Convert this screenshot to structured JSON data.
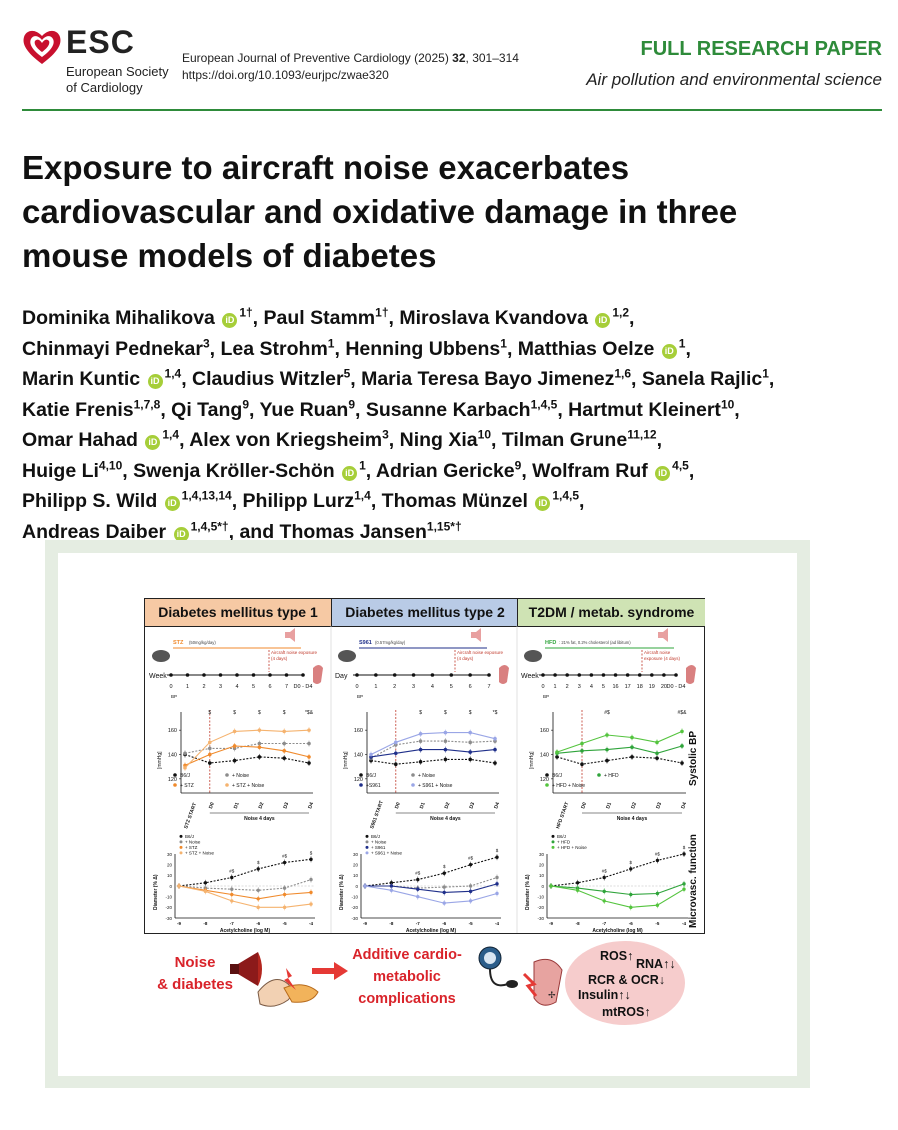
{
  "header": {
    "logo_word": "ESC",
    "logo_sub_1": "European Society",
    "logo_sub_2": "of Cardiology",
    "journal_name": "European Journal of Preventive Cardiology (2025)",
    "journal_volume": "32",
    "journal_pages": ", 301–314",
    "doi": "https://doi.org/10.1093/eurjpc/zwae320",
    "paper_type": "FULL RESEARCH PAPER",
    "paper_category": "Air pollution and environmental science"
  },
  "title_lines": [
    "Exposure to aircraft noise exacerbates",
    "cardiovascular and oxidative damage in three",
    "mouse models of diabetes"
  ],
  "authors": [
    {
      "name": "Dominika Mihalikova",
      "orcid": true,
      "sup": "1†"
    },
    {
      "name": "Paul Stamm",
      "orcid": false,
      "sup": "1†"
    },
    {
      "name": "Miroslava Kvandova",
      "orcid": true,
      "sup": "1,2"
    },
    {
      "name": "Chinmayi Pednekar",
      "orcid": false,
      "sup": "3"
    },
    {
      "name": "Lea Strohm",
      "orcid": false,
      "sup": "1"
    },
    {
      "name": "Henning Ubbens",
      "orcid": false,
      "sup": "1"
    },
    {
      "name": "Matthias Oelze",
      "orcid": true,
      "sup": "1"
    },
    {
      "name": "Marin Kuntic",
      "orcid": true,
      "sup": "1,4"
    },
    {
      "name": "Claudius Witzler",
      "orcid": false,
      "sup": "5"
    },
    {
      "name": "Maria Teresa Bayo Jimenez",
      "orcid": false,
      "sup": "1,6"
    },
    {
      "name": "Sanela Rajlic",
      "orcid": false,
      "sup": "1"
    },
    {
      "name": "Katie Frenis",
      "orcid": false,
      "sup": "1,7,8"
    },
    {
      "name": "Qi Tang",
      "orcid": false,
      "sup": "9"
    },
    {
      "name": "Yue Ruan",
      "orcid": false,
      "sup": "9"
    },
    {
      "name": "Susanne Karbach",
      "orcid": false,
      "sup": "1,4,5"
    },
    {
      "name": "Hartmut Kleinert",
      "orcid": false,
      "sup": "10"
    },
    {
      "name": "Omar Hahad",
      "orcid": true,
      "sup": "1,4"
    },
    {
      "name": "Alex von Kriegsheim",
      "orcid": false,
      "sup": "3"
    },
    {
      "name": "Ning Xia",
      "orcid": false,
      "sup": "10"
    },
    {
      "name": "Tilman Grune",
      "orcid": false,
      "sup": "11,12"
    },
    {
      "name": "Huige Li",
      "orcid": false,
      "sup": "4,10"
    },
    {
      "name": "Swenja Kröller-Schön",
      "orcid": true,
      "sup": "1"
    },
    {
      "name": "Adrian Gericke",
      "orcid": false,
      "sup": "9"
    },
    {
      "name": "Wolfram Ruf",
      "orcid": true,
      "sup": "4,5"
    },
    {
      "name": "Philipp S. Wild",
      "orcid": true,
      "sup": "1,4,13,14"
    },
    {
      "name": "Philipp Lurz",
      "orcid": false,
      "sup": "1,4"
    },
    {
      "name": "Thomas Münzel",
      "orcid": true,
      "sup": "1,4,5"
    },
    {
      "name": "Andreas Daiber",
      "orcid": true,
      "sup": "1,4,5*†"
    },
    {
      "name": "Thomas Jansen",
      "orcid": false,
      "sup": "1,15*†"
    }
  ],
  "author_line_breaks_after": [
    2,
    6,
    10,
    15,
    19,
    23,
    26
  ],
  "graphical_abstract": {
    "panels": [
      {
        "title": "Diabetes mellitus type 1",
        "color": "#f6c9a4",
        "drug_label": "STZ",
        "drug_sub": "(50mg/kg/day)",
        "timeline_unit": "Week",
        "timeline_ticks": [
          "0",
          "1",
          "2",
          "3",
          "4",
          "5",
          "6",
          "7",
          "D0 - D4"
        ],
        "noise_label": "Aircraft noise exposure",
        "noise_sub": "(4 days)",
        "start_label": "STZ START",
        "legend": [
          "B6/J",
          "+ Noise",
          "+ STZ",
          "+ STZ + Noise"
        ],
        "micro_legend": [
          "B6/J",
          "+ Noise",
          "+ STZ",
          "+ STZ + Noise"
        ]
      },
      {
        "title": "Diabetes mellitus type 2",
        "color": "#b9cbe6",
        "drug_label": "S961",
        "drug_sub": "(0.57mg/kg/day)",
        "timeline_unit": "Day",
        "timeline_ticks": [
          "0",
          "1",
          "2",
          "3",
          "4",
          "5",
          "6",
          "7"
        ],
        "noise_label": "Aircraft noise exposure",
        "noise_sub": "(4 days)",
        "start_label": "S961 START",
        "legend": [
          "B6/J",
          "+ Noise",
          "+S961",
          "+ S961 + Noise"
        ],
        "micro_legend": [
          "B6/J",
          "+ Noise",
          "+ S961",
          "+ S961 + Noise"
        ]
      },
      {
        "title": "T2DM / metab. syndrome",
        "color": "#cfe3b4",
        "drug_label": "HFD",
        "drug_sub": ": 21% fat, 0.2% cholesterol (ad libitum)",
        "timeline_unit": "Week",
        "timeline_ticks": [
          "0",
          "1",
          "2",
          "3",
          "4",
          "5",
          "16",
          "17",
          "18",
          "19",
          "20",
          "D0 - D4"
        ],
        "noise_label": "Aircraft noise",
        "noise_sub": "exposure (4 days)",
        "start_label": "HFD START",
        "legend": [
          "B6/J",
          "+ HFD",
          "+ HFD + Noise"
        ],
        "micro_legend": [
          "B6/J",
          "+ HFD",
          "+ HFD + Noise"
        ]
      }
    ],
    "bp_y_label": "[mmHg]",
    "bp_ticks": [
      "120",
      "140",
      "160"
    ],
    "bp_x_ticks": [
      "D0",
      "D1",
      "D2",
      "D3",
      "D4"
    ],
    "bp_x_caption": "Noise 4 days",
    "micro_y_label": "Diameter (% Δ)",
    "micro_ticks": [
      "30",
      "20",
      "10",
      "0",
      "-10",
      "-20",
      "-30"
    ],
    "micro_x_ticks": [
      "-9",
      "-8",
      "-7",
      "-6",
      "-5",
      "-4"
    ],
    "micro_x_label": "Acetylcholine (log M)",
    "bp_marks_p1": [
      "$",
      "$",
      "$",
      "$",
      "*$&"
    ],
    "bp_marks_p2": [
      "$",
      "$",
      "$",
      "*$"
    ],
    "bp_marks_p3": [
      "#$",
      "#$&"
    ],
    "micro_marks": [
      "#$",
      "$",
      "#$",
      "$"
    ],
    "side_label_bp": "Systolic BP",
    "side_label_micro": "Microvasc. function",
    "bottom_left_1": "Noise",
    "bottom_left_2": "& diabetes",
    "bottom_mid_1": "Additive cardio-",
    "bottom_mid_2": "metabolic",
    "bottom_mid_3": "complications",
    "ros_1": "ROS↑",
    "ros_2": "RNA↑↓",
    "ros_3": "RCR & OCR↓",
    "ros_4": "Insulin↑↓",
    "ros_5": "mtROS↑",
    "bp_abbrev": "BP",
    "series_colors": {
      "ctrl": "#111111",
      "noise": "#8c8c8c",
      "p1": "#f08a2c",
      "p1n": "#f5b36f",
      "p2": "#1f2f8a",
      "p2n": "#9aa6e6",
      "p3": "#2fa43b",
      "p3n": "#54c43e"
    },
    "chart_data": [
      {
        "type": "line",
        "title": "Systolic BP – DM type 1",
        "x": [
          "STZ START",
          "D0",
          "D1",
          "D2",
          "D3",
          "D4"
        ],
        "ylim": [
          110,
          170
        ],
        "series": [
          {
            "name": "B6/J",
            "values": [
              140,
              133,
              135,
              138,
              137,
              133
            ]
          },
          {
            "name": "+ Noise",
            "values": [
              141,
              145,
              145,
              149,
              149,
              149
            ]
          },
          {
            "name": "+ STZ",
            "values": [
              131,
              140,
              147,
              146,
              143,
              138
            ]
          },
          {
            "name": "+ STZ + Noise",
            "values": [
              129,
              150,
              159,
              160,
              159,
              160
            ]
          }
        ]
      },
      {
        "type": "line",
        "title": "Systolic BP – DM type 2",
        "x": [
          "S961 START",
          "D0",
          "D1",
          "D2",
          "D3",
          "D4"
        ],
        "ylim": [
          110,
          170
        ],
        "series": [
          {
            "name": "B6/J",
            "values": [
              135,
              132,
              134,
              136,
              136,
              133
            ]
          },
          {
            "name": "+ Noise",
            "values": [
              137,
              148,
              151,
              151,
              150,
              151
            ]
          },
          {
            "name": "+S961",
            "values": [
              138,
              141,
              144,
              144,
              142,
              144
            ]
          },
          {
            "name": "+ S961 + Noise",
            "values": [
              140,
              150,
              157,
              158,
              158,
              153
            ]
          }
        ]
      },
      {
        "type": "line",
        "title": "Systolic BP – T2DM / metab. syndrome",
        "x": [
          "HFD START",
          "D0",
          "D1",
          "D2",
          "D3",
          "D4"
        ],
        "ylim": [
          110,
          170
        ],
        "series": [
          {
            "name": "B6/J",
            "values": [
              138,
              132,
              135,
              138,
              137,
              133
            ]
          },
          {
            "name": "+ HFD",
            "values": [
              141,
              143,
              144,
              146,
              141,
              147
            ]
          },
          {
            "name": "+ HFD + Noise",
            "values": [
              142,
              149,
              156,
              154,
              150,
              159
            ]
          }
        ]
      },
      {
        "type": "line",
        "title": "Microvascular function – DM type 1",
        "x": [
          -9,
          -8,
          -7,
          -6,
          -5,
          -4
        ],
        "ylim": [
          -30,
          30
        ],
        "series": [
          {
            "name": "B6/J",
            "values": [
              0,
              3,
              8,
              16,
              22,
              25
            ]
          },
          {
            "name": "+ Noise",
            "values": [
              0,
              -2,
              -3,
              -4,
              -2,
              6
            ]
          },
          {
            "name": "+ STZ",
            "values": [
              0,
              -4,
              -8,
              -12,
              -8,
              -6
            ]
          },
          {
            "name": "+ STZ + Noise",
            "values": [
              0,
              -5,
              -14,
              -20,
              -20,
              -17
            ]
          }
        ]
      },
      {
        "type": "line",
        "title": "Microvascular function – DM type 2",
        "x": [
          -9,
          -8,
          -7,
          -6,
          -5,
          -4
        ],
        "ylim": [
          -30,
          30
        ],
        "series": [
          {
            "name": "B6/J",
            "values": [
              0,
              3,
              6,
              12,
              20,
              27
            ]
          },
          {
            "name": "+ Noise",
            "values": [
              0,
              0,
              -2,
              -1,
              0,
              8
            ]
          },
          {
            "name": "+ S961",
            "values": [
              0,
              0,
              -3,
              -6,
              -5,
              2
            ]
          },
          {
            "name": "+ S961 + Noise",
            "values": [
              0,
              -4,
              -10,
              -16,
              -14,
              -7
            ]
          }
        ]
      },
      {
        "type": "line",
        "title": "Microvascular function – T2DM / metab. syndrome",
        "x": [
          -9,
          -8,
          -7,
          -6,
          -5,
          -4
        ],
        "ylim": [
          -30,
          30
        ],
        "series": [
          {
            "name": "B6/J",
            "values": [
              0,
              3,
              8,
              16,
              24,
              30
            ]
          },
          {
            "name": "+ HFD",
            "values": [
              0,
              -2,
              -5,
              -8,
              -7,
              2
            ]
          },
          {
            "name": "+ HFD + Noise",
            "values": [
              0,
              -4,
              -14,
              -20,
              -18,
              -3
            ]
          }
        ]
      }
    ]
  }
}
